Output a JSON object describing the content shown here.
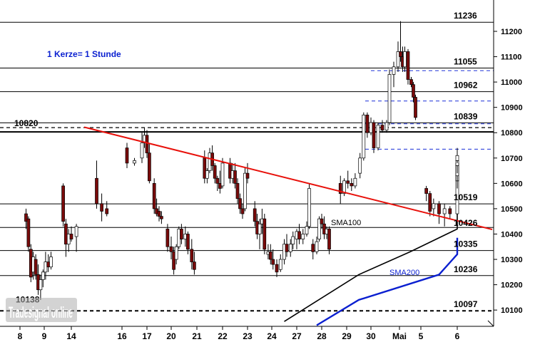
{
  "chart_data": {
    "type": "candlestick",
    "annotation": "1 Kerze= 1 Stunde",
    "watermark": "Tradesignal online",
    "x_ticks": [
      "8",
      "9",
      "14",
      "16",
      "17",
      "20",
      "21",
      "22",
      "23",
      "24",
      "27",
      "28",
      "29",
      "30",
      "Mai",
      "5",
      "6"
    ],
    "y_ticks": [
      10100,
      10200,
      10300,
      10400,
      10500,
      10600,
      10700,
      10800,
      10900,
      11000,
      11100,
      11200
    ],
    "ylim": [
      10040,
      11270
    ],
    "levels": [
      {
        "value": 11236,
        "label": "11236",
        "style": "solid"
      },
      {
        "value": 11055,
        "label": "11055",
        "style": "solid"
      },
      {
        "value": 10962,
        "label": "10962",
        "style": "solid"
      },
      {
        "value": 10839,
        "label": "10839",
        "style": "solid"
      },
      {
        "value": 10820,
        "label": "10820",
        "style": "dashed"
      },
      {
        "value": 10519,
        "label": "10519",
        "style": "solid"
      },
      {
        "value": 10426,
        "label": "10426",
        "style": "solid"
      },
      {
        "value": 10335,
        "label": "10335",
        "style": "solid"
      },
      {
        "value": 10236,
        "label": "10236",
        "style": "solid"
      },
      {
        "value": 10138,
        "label": "10138",
        "style": "none"
      },
      {
        "value": 10097,
        "label": "10097",
        "style": "dashed"
      }
    ],
    "short_dashed_levels": [
      11045,
      10925,
      10835,
      10735
    ],
    "trendline": {
      "color": "#e8100a",
      "start": {
        "x": "14",
        "y": 10822
      },
      "end": {
        "x": "6",
        "y": 10418
      }
    },
    "series": [
      {
        "name": "SMA100",
        "color": "#000000",
        "points": [
          [
            9.5,
            10055
          ],
          [
            12.5,
            10240
          ],
          [
            14.5,
            10330
          ],
          [
            16.5,
            10420
          ],
          [
            19.5,
            10465
          ],
          [
            22.5,
            10505
          ],
          [
            24.0,
            10548
          ],
          [
            26.5,
            10562
          ],
          [
            28.7,
            10600
          ]
        ]
      },
      {
        "name": "SMA200",
        "color": "#0a1fd0",
        "points": [
          [
            10.8,
            10040
          ],
          [
            12.5,
            10140
          ],
          [
            15.5,
            10240
          ],
          [
            19.5,
            10320
          ],
          [
            22.5,
            10360
          ],
          [
            24.5,
            10380
          ],
          [
            25.0,
            10385
          ]
        ]
      }
    ],
    "colors": {
      "up": "#ffffff",
      "down": "#7a0a0a",
      "text_annotation": "#0a1fd0"
    }
  }
}
